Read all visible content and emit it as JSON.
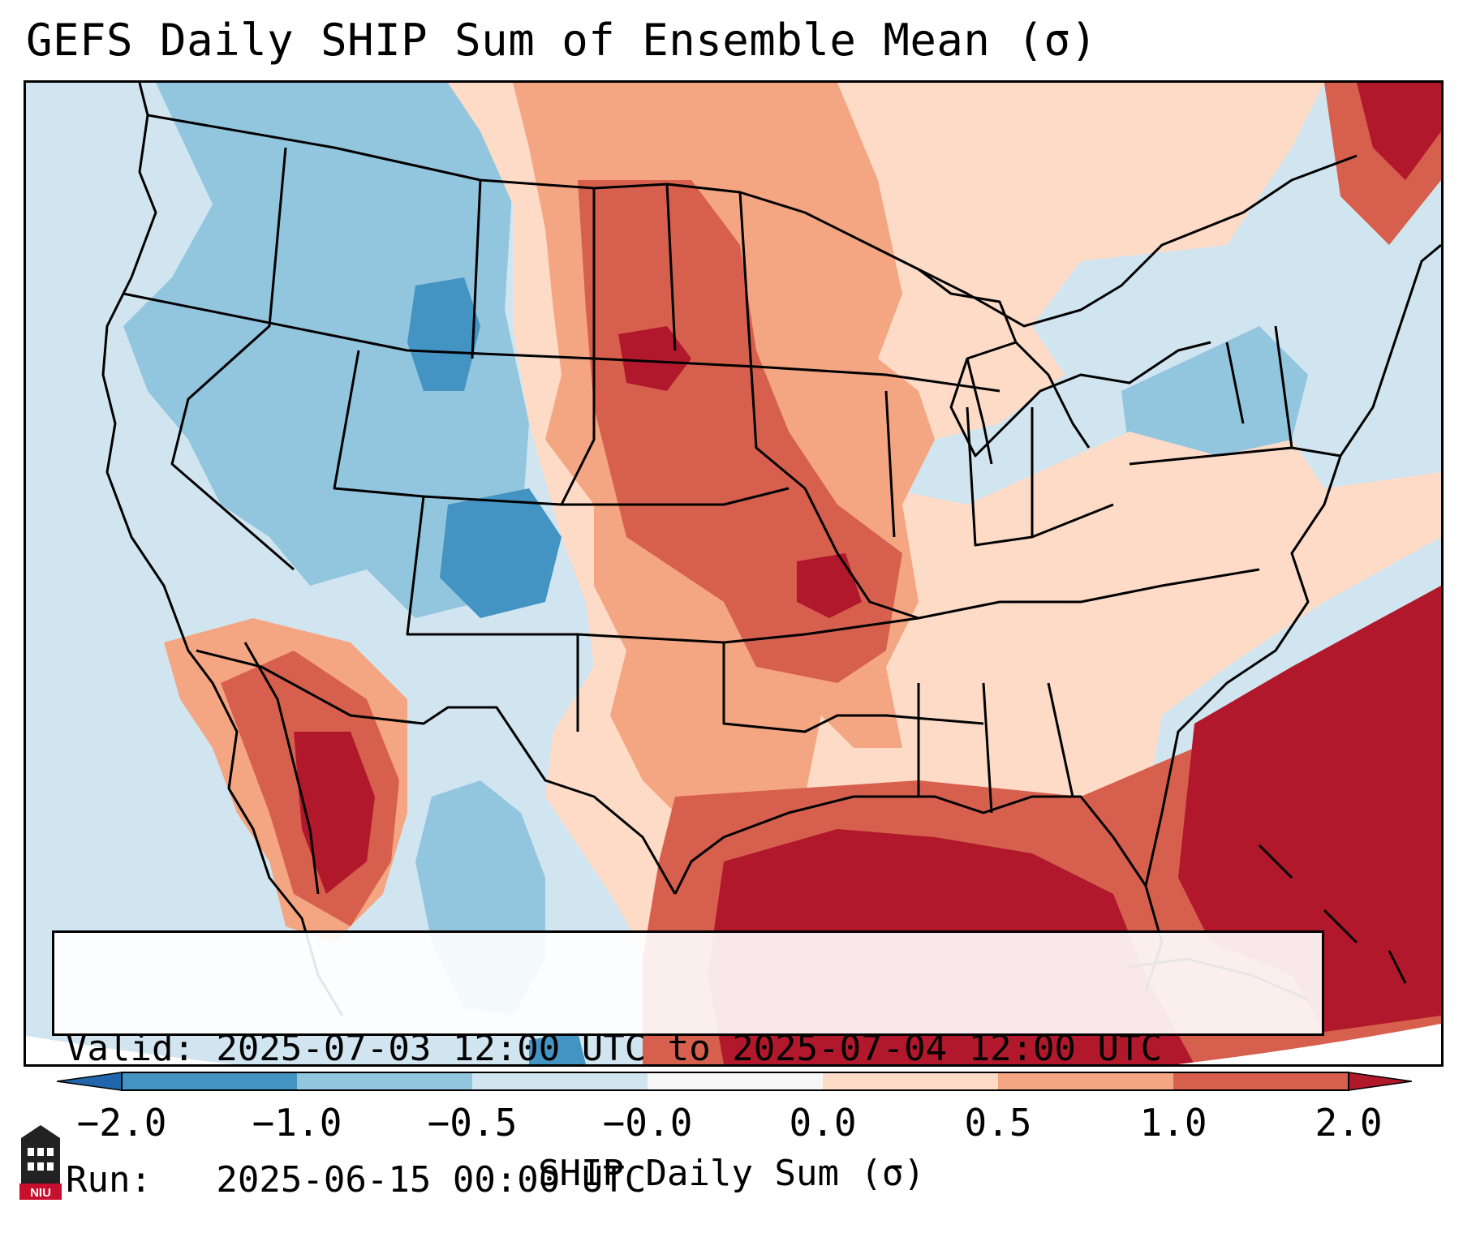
{
  "title": "GEFS Daily SHIP Sum of Ensemble Mean (σ)",
  "info": {
    "valid_line": "Valid: 2025-07-03 12:00 UTC to 2025-07-04 12:00 UTC",
    "run_line": "Run:   2025-06-15 00:00 UTC"
  },
  "colorbar": {
    "label": "SHIP Daily Sum (σ)",
    "ticks": [
      "−2.0",
      "−1.0",
      "−0.5",
      "−0.0",
      "0.0",
      "0.5",
      "1.0",
      "2.0"
    ],
    "colors": [
      "#4393c3",
      "#92c5de",
      "#d1e5f0",
      "#fddbc7",
      "#f4a582",
      "#d6604d",
      "#b2182b"
    ],
    "under_color": "#2166ac",
    "over_color": "#b2182b"
  },
  "logo": {
    "text": "NIU",
    "icon": "niu-building-logo-icon"
  },
  "colors": {
    "neg_strong": "#4393c3",
    "neg_mid": "#92c5de",
    "neg_light": "#d1e5f0",
    "pos_light": "#fddbc7",
    "pos_mid": "#f4a582",
    "pos_strong": "#d6604d",
    "pos_max": "#b2182b",
    "background": "#d1e5f0"
  }
}
